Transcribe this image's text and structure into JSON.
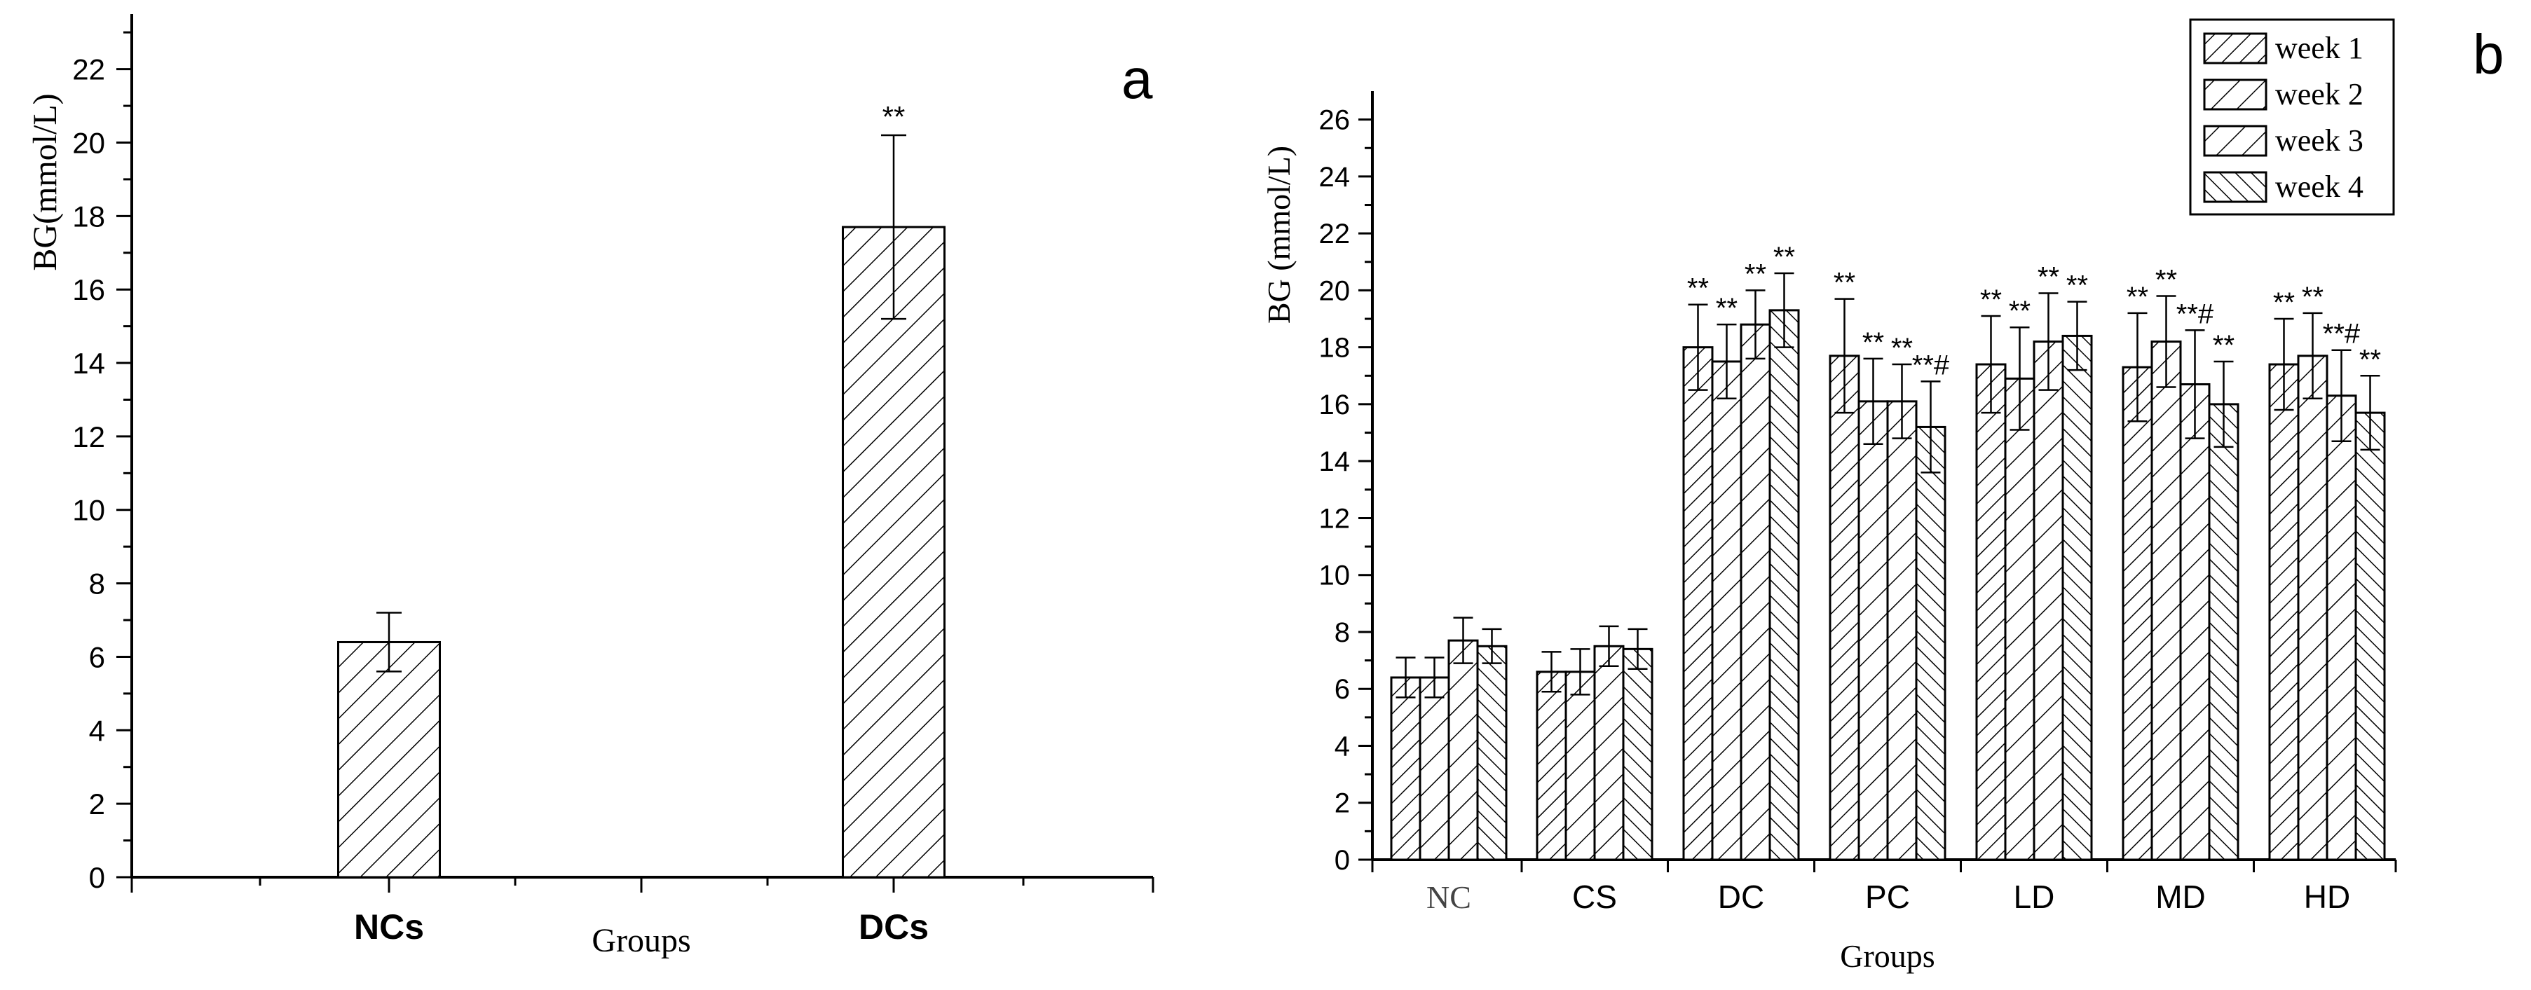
{
  "chart_data": [
    {
      "panel": "a",
      "type": "bar",
      "categories": [
        "NCs",
        "DCs"
      ],
      "values": [
        6.4,
        17.7
      ],
      "errors": [
        0.8,
        2.5
      ],
      "annotations": [
        "",
        "**"
      ],
      "xlabel": "Groups",
      "ylabel": "BG(mmol/L)",
      "ylim": [
        0,
        23.5
      ],
      "yticks": [
        0,
        2,
        4,
        6,
        8,
        10,
        12,
        14,
        16,
        18,
        20,
        22
      ],
      "grid": false,
      "legend": "none"
    },
    {
      "panel": "b",
      "type": "bar",
      "categories": [
        "NC",
        "CS",
        "DC",
        "PC",
        "LD",
        "MD",
        "HD"
      ],
      "series": [
        {
          "name": "week 1",
          "values": [
            6.4,
            6.6,
            18.0,
            17.7,
            17.4,
            17.3,
            17.4
          ],
          "errors": [
            0.7,
            0.7,
            1.5,
            2.0,
            1.7,
            1.9,
            1.6
          ],
          "annotations": [
            "",
            "",
            "**",
            "**",
            "**",
            "**",
            "**"
          ]
        },
        {
          "name": "week 2",
          "values": [
            6.4,
            6.6,
            17.5,
            16.1,
            16.9,
            18.2,
            17.7
          ],
          "errors": [
            0.7,
            0.8,
            1.3,
            1.5,
            1.8,
            1.6,
            1.5
          ],
          "annotations": [
            "",
            "",
            "**",
            "**",
            "**",
            "**",
            "**"
          ]
        },
        {
          "name": "week 3",
          "values": [
            7.7,
            7.5,
            18.8,
            16.1,
            18.2,
            16.7,
            16.3
          ],
          "errors": [
            0.8,
            0.7,
            1.2,
            1.3,
            1.7,
            1.9,
            1.6
          ],
          "annotations": [
            "",
            "",
            "**",
            "**",
            "**",
            "**#",
            "**#"
          ]
        },
        {
          "name": "week 4",
          "values": [
            7.5,
            7.4,
            19.3,
            15.2,
            18.4,
            16.0,
            15.7
          ],
          "errors": [
            0.6,
            0.7,
            1.3,
            1.6,
            1.2,
            1.5,
            1.3
          ],
          "annotations": [
            "",
            "",
            "**",
            "**#",
            "**",
            "**",
            "**"
          ]
        }
      ],
      "xlabel": "Groups",
      "ylabel": "BG (mmol/L)",
      "ylim": [
        0,
        27
      ],
      "yticks": [
        0,
        2,
        4,
        6,
        8,
        10,
        12,
        14,
        16,
        18,
        20,
        22,
        24,
        26
      ],
      "grid": false,
      "legend": "top-right"
    }
  ],
  "colors": {
    "ink": "#000000",
    "bar_fill": "#ffffff",
    "background": "#ffffff"
  }
}
